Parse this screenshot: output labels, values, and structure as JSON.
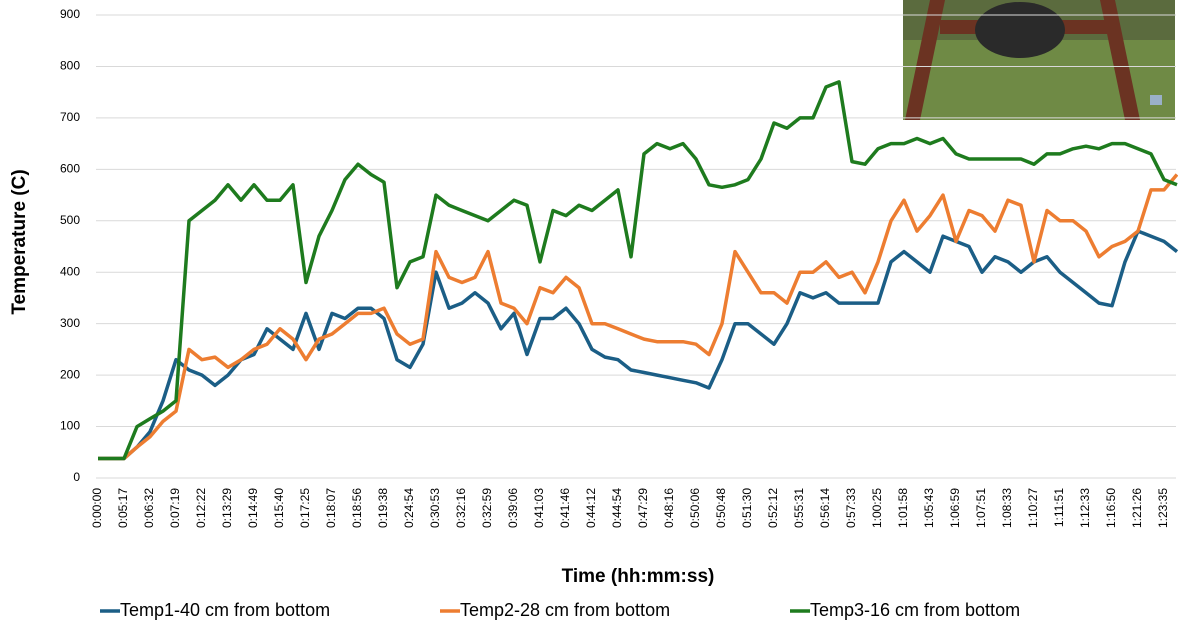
{
  "chart_data": {
    "type": "line",
    "y_label": "Temperature (C)",
    "x_label": "Time (hh:mm:ss)",
    "categories": [
      "0:00:00",
      null,
      "0:05:17",
      null,
      "0:06:32",
      null,
      "0:07:19",
      null,
      "0:12:22",
      null,
      "0:13:29",
      null,
      "0:14:49",
      null,
      "0:15:40",
      null,
      "0:17:25",
      null,
      "0:18:07",
      null,
      "0:18:56",
      null,
      "0:19:38",
      null,
      "0:24:54",
      null,
      "0:30:53",
      null,
      "0:32:16",
      null,
      "0:32:59",
      null,
      "0:39:06",
      null,
      "0:41:03",
      null,
      "0:41:46",
      null,
      "0:44:12",
      null,
      "0:44:54",
      null,
      "0:47:29",
      null,
      "0:48:16",
      null,
      "0:50:06",
      null,
      "0:50:48",
      null,
      "0:51:30",
      null,
      "0:52:12",
      null,
      "0:55:31",
      null,
      "0:56:14",
      null,
      "0:57:33",
      null,
      "1:00:25",
      null,
      "1:01:58",
      null,
      "1:05:43",
      null,
      "1:06:59",
      null,
      "1:07:51",
      null,
      "1:08:33",
      null,
      "1:10:27",
      null,
      "1:11:51",
      null,
      "1:12:33",
      null,
      "1:16:50",
      null,
      "1:21:26",
      null,
      "1:23:35",
      null
    ],
    "series": [
      {
        "name": "Temp1-40 cm from bottom",
        "color": "#1b5e86",
        "values": [
          38,
          38,
          38,
          60,
          90,
          150,
          230,
          210,
          200,
          180,
          200,
          230,
          240,
          290,
          270,
          250,
          320,
          250,
          320,
          310,
          330,
          330,
          310,
          230,
          215,
          260,
          400,
          330,
          340,
          360,
          340,
          290,
          320,
          240,
          310,
          310,
          330,
          300,
          250,
          235,
          230,
          210,
          205,
          200,
          195,
          190,
          185,
          175,
          230,
          300,
          300,
          280,
          260,
          300,
          360,
          350,
          360,
          340,
          340,
          340,
          340,
          420,
          440,
          420,
          400,
          470,
          460,
          450,
          400,
          430,
          420,
          400,
          420,
          430,
          400,
          380,
          360,
          340,
          335,
          420,
          480,
          470,
          460,
          440
        ]
      },
      {
        "name": "Temp2-28 cm from bottom",
        "color": "#ed7d31",
        "values": [
          38,
          38,
          38,
          60,
          80,
          110,
          130,
          250,
          230,
          235,
          215,
          230,
          250,
          260,
          290,
          270,
          230,
          270,
          280,
          300,
          320,
          320,
          330,
          280,
          260,
          270,
          440,
          390,
          380,
          390,
          440,
          340,
          330,
          300,
          370,
          360,
          390,
          370,
          300,
          300,
          290,
          280,
          270,
          265,
          265,
          265,
          260,
          240,
          300,
          440,
          400,
          360,
          360,
          340,
          400,
          400,
          420,
          390,
          400,
          360,
          420,
          500,
          540,
          480,
          510,
          550,
          460,
          520,
          510,
          480,
          540,
          530,
          420,
          520,
          500,
          500,
          480,
          430,
          450,
          460,
          480,
          560,
          560,
          590
        ]
      },
      {
        "name": "Temp3-16 cm from bottom",
        "color": "#1e7b1e",
        "values": [
          38,
          38,
          38,
          100,
          115,
          130,
          150,
          500,
          520,
          540,
          570,
          540,
          570,
          540,
          540,
          570,
          380,
          470,
          520,
          580,
          610,
          590,
          575,
          370,
          420,
          430,
          550,
          530,
          520,
          510,
          500,
          520,
          540,
          530,
          420,
          520,
          510,
          530,
          520,
          540,
          560,
          430,
          630,
          650,
          640,
          650,
          620,
          570,
          565,
          570,
          580,
          620,
          690,
          680,
          700,
          700,
          760,
          770,
          615,
          610,
          640,
          650,
          650,
          660,
          650,
          660,
          630,
          620,
          620,
          620,
          620,
          620,
          610,
          630,
          630,
          640,
          645,
          640,
          650,
          650,
          640,
          630,
          580,
          570
        ]
      }
    ],
    "ylim": [
      0,
      900
    ],
    "yticks": [
      0,
      100,
      200,
      300,
      400,
      500,
      600,
      700,
      800,
      900
    ],
    "grid": true,
    "legend": "bottom"
  }
}
